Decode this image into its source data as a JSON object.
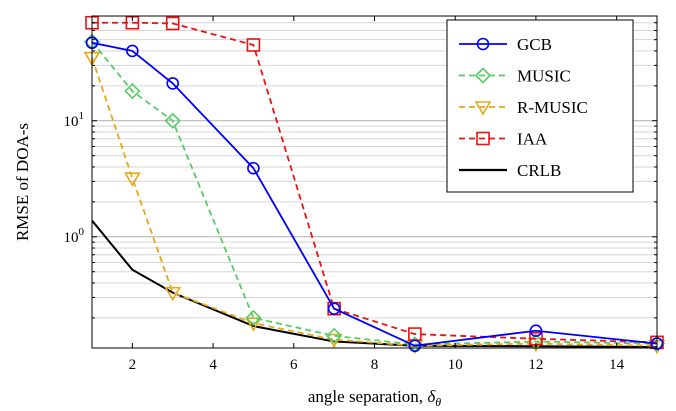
{
  "chart_data": {
    "type": "line",
    "title": "",
    "xlabel": "angle separation, δθ",
    "ylabel": "RMSE of DOA-s",
    "xlim": [
      1,
      15
    ],
    "ylim": [
      0.11,
      80
    ],
    "yscale": "log",
    "grid": "log-minor horizontal",
    "legend_position": "top-right",
    "x_ticks": [
      "2",
      "4",
      "6",
      "8",
      "10",
      "12",
      "14"
    ],
    "y_ticks": [
      "10^0",
      "10^1"
    ],
    "series": [
      {
        "name": "GCB",
        "color": "#0000ff",
        "line_style": "solid",
        "marker": "circle",
        "x": [
          1,
          2,
          3,
          5,
          7,
          9,
          12,
          15
        ],
        "y": [
          47,
          40,
          21,
          3.9,
          0.24,
          0.115,
          0.155,
          0.12
        ]
      },
      {
        "name": "MUSIC",
        "color": "#55cc66",
        "line_style": "dashed",
        "marker": "diamond",
        "x": [
          1,
          2,
          3,
          5,
          7,
          9,
          12,
          15
        ],
        "y": [
          48,
          18,
          10,
          0.2,
          0.14,
          0.118,
          0.125,
          0.12
        ]
      },
      {
        "name": "R-MUSIC",
        "color": "#e6a817",
        "line_style": "dashed",
        "marker": "triangle-down",
        "x": [
          1,
          2,
          3,
          5,
          7,
          9,
          12,
          15
        ],
        "y": [
          35,
          3.2,
          0.33,
          0.18,
          0.13,
          0.115,
          0.12,
          0.115
        ]
      },
      {
        "name": "IAA",
        "color": "#ee1111",
        "line_style": "dashed",
        "marker": "square",
        "x": [
          1,
          2,
          3,
          5,
          7,
          9,
          12,
          15
        ],
        "y": [
          70,
          70,
          69,
          45,
          0.24,
          0.145,
          0.132,
          0.123
        ]
      },
      {
        "name": "CRLB",
        "color": "#000000",
        "line_style": "solid",
        "marker": "none",
        "x": [
          1,
          2,
          3,
          5,
          7,
          9,
          12,
          15
        ],
        "y": [
          1.38,
          0.52,
          0.33,
          0.17,
          0.125,
          0.115,
          0.114,
          0.112
        ]
      }
    ]
  }
}
